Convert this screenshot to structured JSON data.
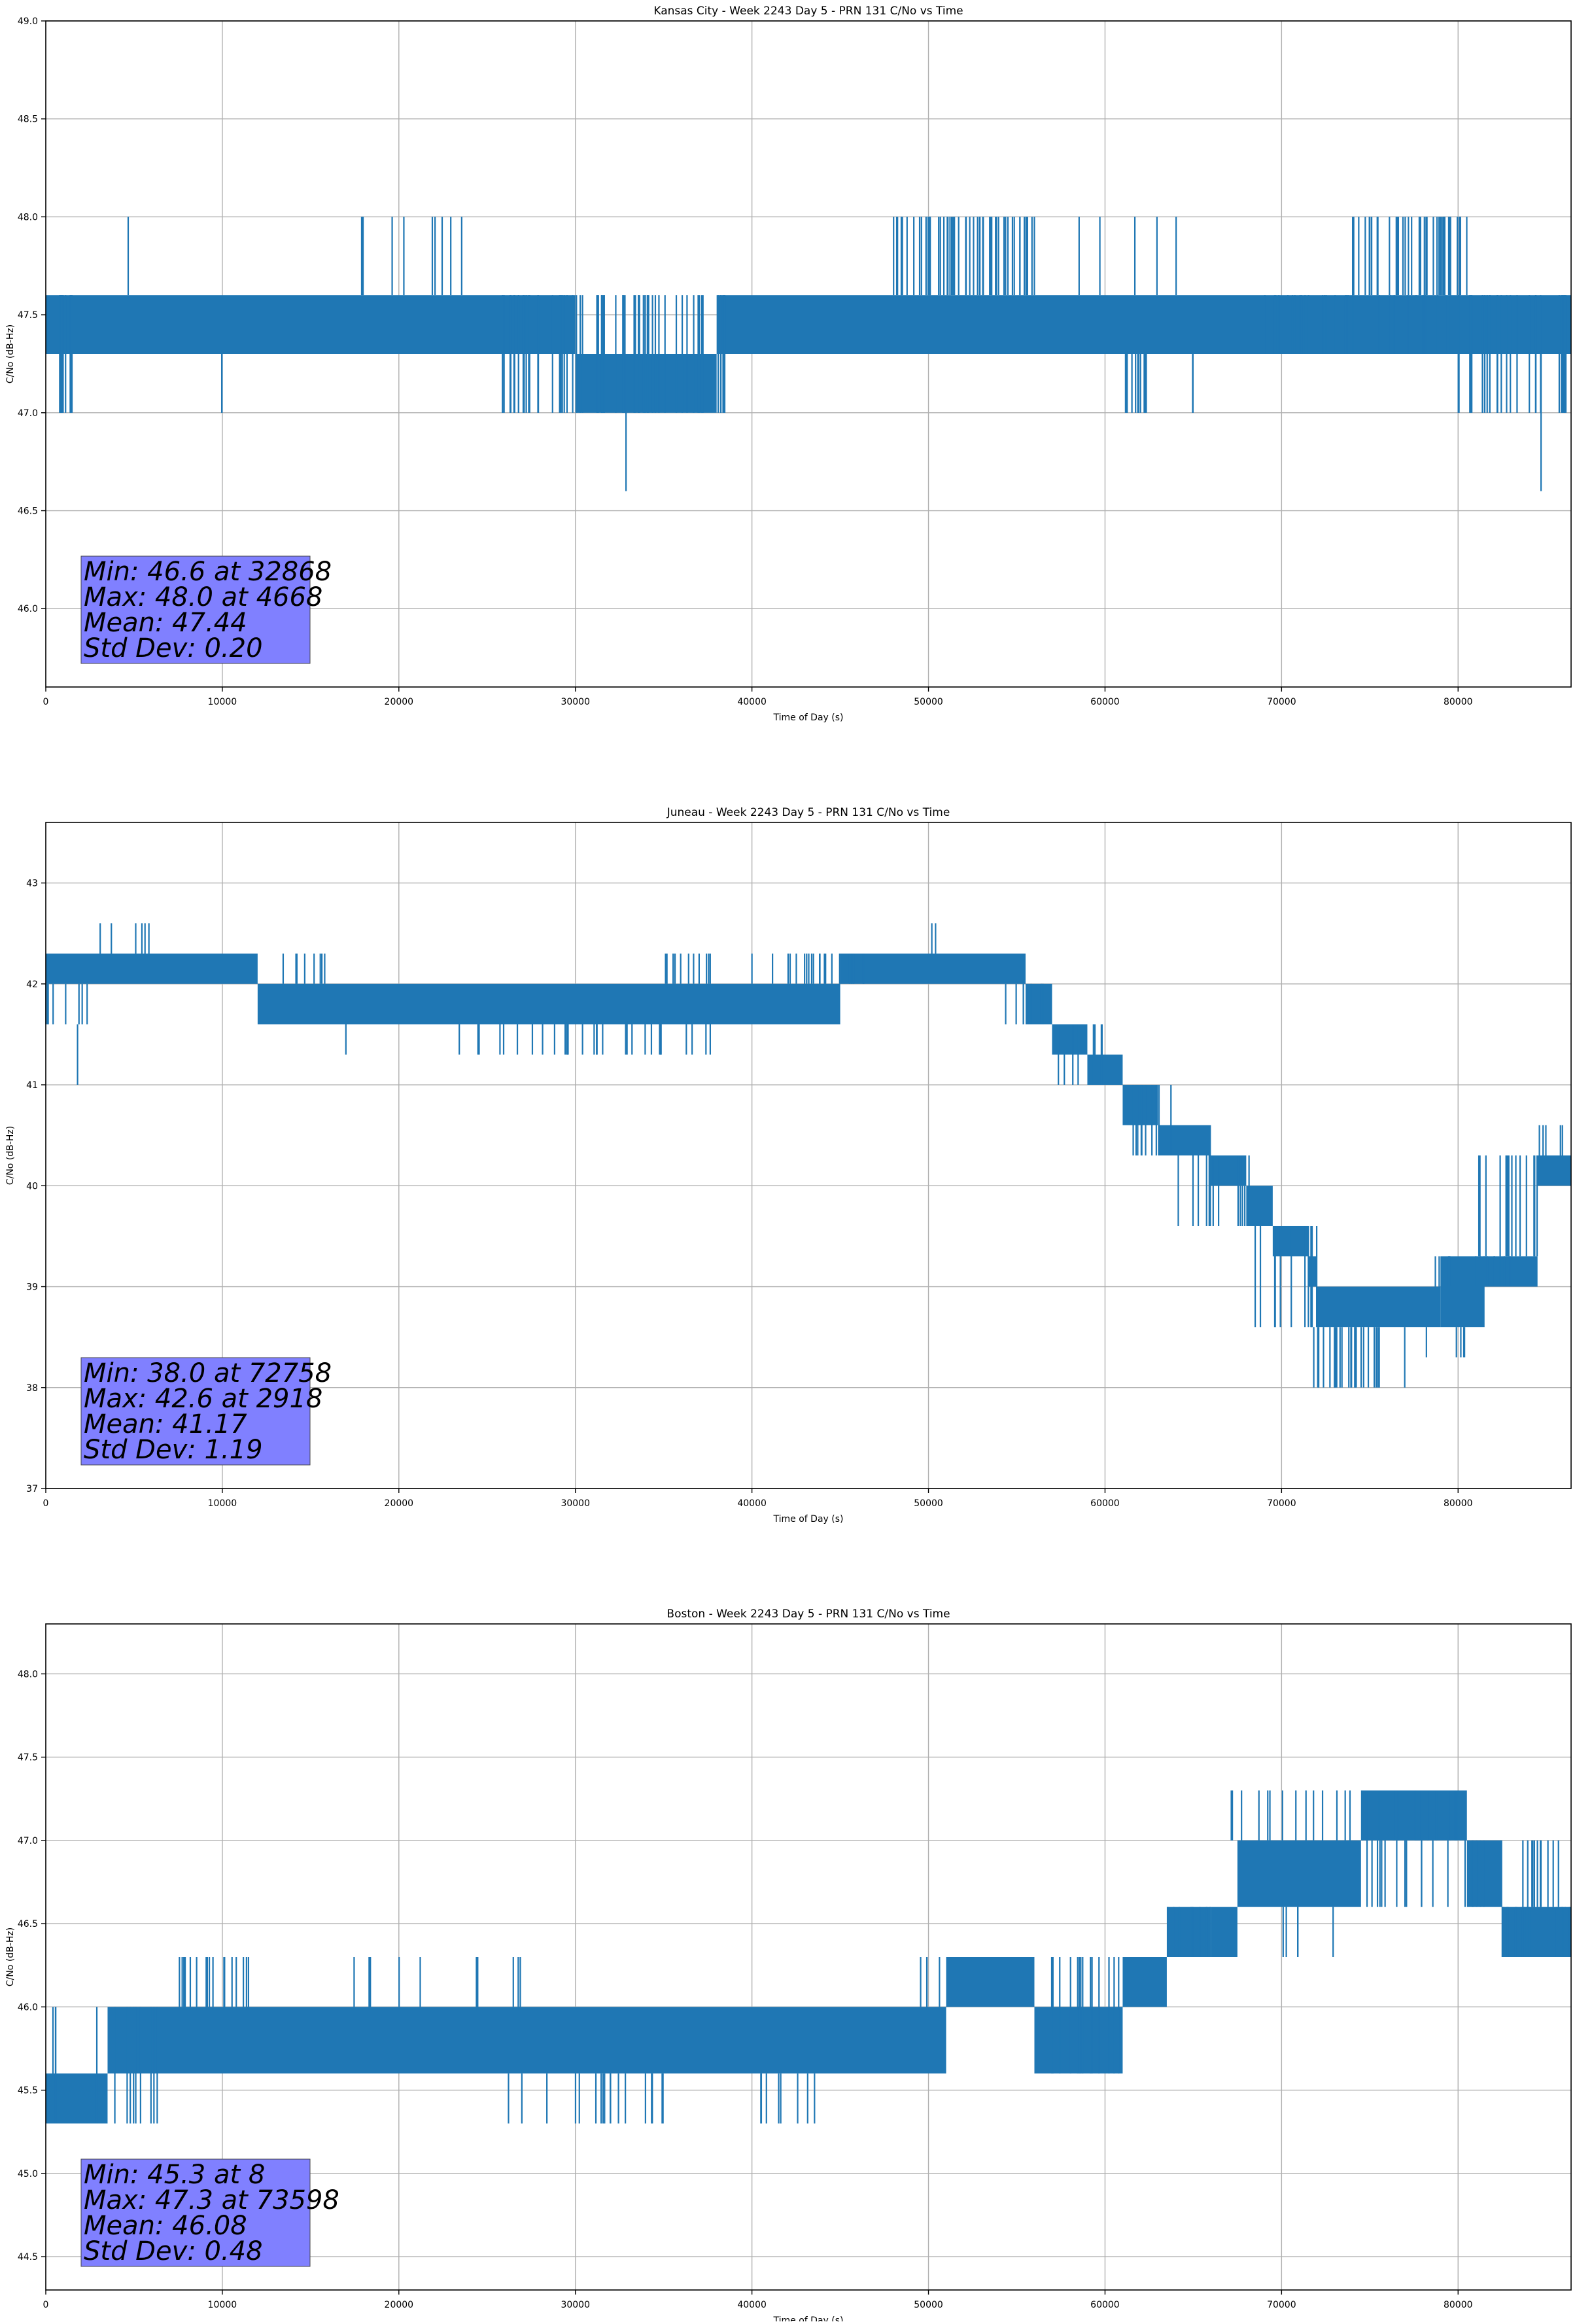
{
  "figure": {
    "background": "#ffffff",
    "series_color": "#1f77b4",
    "stats_box_color": "#8080ff",
    "grid_color": "#b0b0b0"
  },
  "chart_data": [
    {
      "type": "line",
      "title": "Kansas City - Week 2243 Day 5 - PRN 131 C/No vs Time",
      "xlabel": "Time of Day (s)",
      "ylabel": "C/No (dB-Hz)",
      "xlim": [
        0,
        86400
      ],
      "ylim": [
        45.6,
        49.0
      ],
      "xticks": [
        0,
        10000,
        20000,
        30000,
        40000,
        50000,
        60000,
        70000,
        80000
      ],
      "xtick_labels": [
        "0",
        "10000",
        "20000",
        "30000",
        "40000",
        "50000",
        "60000",
        "70000",
        "80000"
      ],
      "yticks": [
        46.0,
        46.5,
        47.0,
        47.5,
        48.0,
        48.5,
        49.0
      ],
      "ytick_labels": [
        "46.0",
        "46.5",
        "47.0",
        "47.5",
        "48.0",
        "48.5",
        "49.0"
      ],
      "grid": true,
      "stats": [
        "Min: 46.6 at 32868",
        "Max: 48.0 at 4668",
        "Mean: 47.44",
        "Std Dev: 0.20"
      ],
      "series": [
        {
          "bands": [
            {
              "x": [
                0,
                30000
              ],
              "y": [
                47.3,
                47.6
              ]
            },
            {
              "x": [
                30000,
                38000
              ],
              "y": [
                47.0,
                47.3
              ]
            },
            {
              "x": [
                38000,
                86400
              ],
              "y": [
                47.3,
                47.6
              ]
            }
          ],
          "spikes": [
            {
              "x": [
                600,
                1700
              ],
              "y": [
                47.0,
                47.6
              ],
              "n": 10
            },
            {
              "x": [
                9900,
                10000
              ],
              "y": [
                47.0,
                47.3
              ],
              "n": 2
            },
            {
              "x": [
                4668,
                4668
              ],
              "y": [
                47.6,
                48.0
              ],
              "n": 1
            },
            {
              "x": [
                17500,
                24000
              ],
              "y": [
                47.6,
                48.0
              ],
              "n": 10
            },
            {
              "x": [
                25500,
                38500
              ],
              "y": [
                47.0,
                47.6
              ],
              "n": 70
            },
            {
              "x": [
                32868,
                32868
              ],
              "y": [
                46.6,
                47.3
              ],
              "n": 1
            },
            {
              "x": [
                48000,
                56000
              ],
              "y": [
                47.6,
                48.0
              ],
              "n": 55
            },
            {
              "x": [
                57500,
                66000
              ],
              "y": [
                47.6,
                48.0
              ],
              "n": 5
            },
            {
              "x": [
                60000,
                63000
              ],
              "y": [
                47.0,
                47.3
              ],
              "n": 12
            },
            {
              "x": [
                64800,
                65000
              ],
              "y": [
                47.0,
                47.3
              ],
              "n": 2
            },
            {
              "x": [
                74000,
                80500
              ],
              "y": [
                47.6,
                48.0
              ],
              "n": 40
            },
            {
              "x": [
                69000,
                80000
              ],
              "y": [
                47.3,
                47.6
              ],
              "n": 30
            },
            {
              "x": [
                80000,
                86400
              ],
              "y": [
                47.0,
                47.6
              ],
              "n": 30
            },
            {
              "x": [
                84700,
                84700
              ],
              "y": [
                46.6,
                47.3
              ],
              "n": 1
            }
          ]
        }
      ]
    },
    {
      "type": "line",
      "title": "Juneau - Week 2243 Day 5 - PRN 131 C/No vs Time",
      "xlabel": "Time of Day (s)",
      "ylabel": "C/No (dB-Hz)",
      "xlim": [
        0,
        86400
      ],
      "ylim": [
        37.0,
        43.6
      ],
      "xticks": [
        0,
        10000,
        20000,
        30000,
        40000,
        50000,
        60000,
        70000,
        80000
      ],
      "xtick_labels": [
        "0",
        "10000",
        "20000",
        "30000",
        "40000",
        "50000",
        "60000",
        "70000",
        "80000"
      ],
      "yticks": [
        37,
        38,
        39,
        40,
        41,
        42,
        43
      ],
      "ytick_labels": [
        "37",
        "38",
        "39",
        "40",
        "41",
        "42",
        "43"
      ],
      "grid": true,
      "stats": [
        "Min: 38.0 at 72758",
        "Max: 42.6 at 2918",
        "Mean: 41.17",
        "Std Dev: 1.19"
      ],
      "series": [
        {
          "bands": [
            {
              "x": [
                0,
                12000
              ],
              "y": [
                42.0,
                42.3
              ]
            },
            {
              "x": [
                12000,
                45000
              ],
              "y": [
                41.6,
                42.0
              ]
            },
            {
              "x": [
                45000,
                55500
              ],
              "y": [
                42.0,
                42.3
              ]
            },
            {
              "x": [
                55500,
                57000
              ],
              "y": [
                41.6,
                42.0
              ]
            },
            {
              "x": [
                57000,
                59000
              ],
              "y": [
                41.3,
                41.6
              ]
            },
            {
              "x": [
                59000,
                61000
              ],
              "y": [
                41.0,
                41.3
              ]
            },
            {
              "x": [
                61000,
                63000
              ],
              "y": [
                40.6,
                41.0
              ]
            },
            {
              "x": [
                63000,
                66000
              ],
              "y": [
                40.3,
                40.6
              ]
            },
            {
              "x": [
                66000,
                68000
              ],
              "y": [
                40.0,
                40.3
              ]
            },
            {
              "x": [
                68000,
                69500
              ],
              "y": [
                39.6,
                40.0
              ]
            },
            {
              "x": [
                69500,
                71500
              ],
              "y": [
                39.3,
                39.6
              ]
            },
            {
              "x": [
                71500,
                72000
              ],
              "y": [
                39.0,
                39.3
              ]
            },
            {
              "x": [
                72000,
                79000
              ],
              "y": [
                38.6,
                39.0
              ]
            },
            {
              "x": [
                79000,
                81500
              ],
              "y": [
                38.6,
                39.3
              ]
            },
            {
              "x": [
                81500,
                84500
              ],
              "y": [
                39.0,
                39.3
              ]
            },
            {
              "x": [
                84500,
                86400
              ],
              "y": [
                40.0,
                40.3
              ]
            }
          ],
          "spikes": [
            {
              "x": [
                0,
                2500
              ],
              "y": [
                41.6,
                42.0
              ],
              "n": 8
            },
            {
              "x": [
                1800,
                1800
              ],
              "y": [
                41.0,
                41.6
              ],
              "n": 1
            },
            {
              "x": [
                2918,
                6500
              ],
              "y": [
                42.3,
                42.6
              ],
              "n": 6
            },
            {
              "x": [
                12000,
                16000
              ],
              "y": [
                42.0,
                42.3
              ],
              "n": 8
            },
            {
              "x": [
                17000,
                17200
              ],
              "y": [
                41.3,
                41.6
              ],
              "n": 1
            },
            {
              "x": [
                21500,
                38000
              ],
              "y": [
                41.3,
                41.6
              ],
              "n": 30
            },
            {
              "x": [
                35000,
                38000
              ],
              "y": [
                42.0,
                42.3
              ],
              "n": 12
            },
            {
              "x": [
                40000,
                40100
              ],
              "y": [
                42.0,
                42.3
              ],
              "n": 1
            },
            {
              "x": [
                41000,
                46500
              ],
              "y": [
                42.0,
                42.3
              ],
              "n": 20
            },
            {
              "x": [
                50000,
                50500
              ],
              "y": [
                42.3,
                42.6
              ],
              "n": 2
            },
            {
              "x": [
                54000,
                57500
              ],
              "y": [
                41.6,
                42.0
              ],
              "n": 8
            },
            {
              "x": [
                57000,
                60000
              ],
              "y": [
                41.0,
                41.6
              ],
              "n": 8
            },
            {
              "x": [
                61000,
                64000
              ],
              "y": [
                40.3,
                41.0
              ],
              "n": 10
            },
            {
              "x": [
                64000,
                68500
              ],
              "y": [
                39.6,
                40.3
              ],
              "n": 14
            },
            {
              "x": [
                68000,
                72000
              ],
              "y": [
                38.6,
                39.6
              ],
              "n": 12
            },
            {
              "x": [
                71500,
                77000
              ],
              "y": [
                38.0,
                38.6
              ],
              "n": 25
            },
            {
              "x": [
                76000,
                80500
              ],
              "y": [
                38.3,
                38.6
              ],
              "n": 5
            },
            {
              "x": [
                78500,
                84500
              ],
              "y": [
                39.0,
                39.3
              ],
              "n": 14
            },
            {
              "x": [
                81000,
                84500
              ],
              "y": [
                39.3,
                40.3
              ],
              "n": 15
            },
            {
              "x": [
                84000,
                86400
              ],
              "y": [
                40.3,
                40.6
              ],
              "n": 5
            }
          ]
        }
      ]
    },
    {
      "type": "line",
      "title": "Boston - Week 2243 Day 5 - PRN 131 C/No vs Time",
      "xlabel": "Time of Day (s)",
      "ylabel": "C/No (dB-Hz)",
      "xlim": [
        0,
        86400
      ],
      "ylim": [
        44.3,
        48.3
      ],
      "xticks": [
        0,
        10000,
        20000,
        30000,
        40000,
        50000,
        60000,
        70000,
        80000
      ],
      "xtick_labels": [
        "0",
        "10000",
        "20000",
        "30000",
        "40000",
        "50000",
        "60000",
        "70000",
        "80000"
      ],
      "yticks": [
        44.5,
        45.0,
        45.5,
        46.0,
        46.5,
        47.0,
        47.5,
        48.0
      ],
      "ytick_labels": [
        "44.5",
        "45.0",
        "45.5",
        "46.0",
        "46.5",
        "47.0",
        "47.5",
        "48.0"
      ],
      "grid": true,
      "stats": [
        "Min: 45.3 at 8",
        "Max: 47.3 at 73598",
        "Mean: 46.08",
        "Std Dev: 0.48"
      ],
      "series": [
        {
          "bands": [
            {
              "x": [
                0,
                3500
              ],
              "y": [
                45.3,
                45.6
              ]
            },
            {
              "x": [
                3500,
                51000
              ],
              "y": [
                45.6,
                46.0
              ]
            },
            {
              "x": [
                51000,
                56000
              ],
              "y": [
                46.0,
                46.3
              ]
            },
            {
              "x": [
                56000,
                61000
              ],
              "y": [
                45.6,
                46.0
              ]
            },
            {
              "x": [
                61000,
                63500
              ],
              "y": [
                46.0,
                46.3
              ]
            },
            {
              "x": [
                63500,
                66000
              ],
              "y": [
                46.3,
                46.6
              ]
            },
            {
              "x": [
                66000,
                67500
              ],
              "y": [
                46.3,
                46.6
              ]
            },
            {
              "x": [
                67500,
                74500
              ],
              "y": [
                46.6,
                47.0
              ]
            },
            {
              "x": [
                74500,
                80500
              ],
              "y": [
                47.0,
                47.3
              ]
            },
            {
              "x": [
                80500,
                82500
              ],
              "y": [
                46.6,
                47.0
              ]
            },
            {
              "x": [
                82500,
                86400
              ],
              "y": [
                46.3,
                46.6
              ]
            }
          ],
          "spikes": [
            {
              "x": [
                0,
                700
              ],
              "y": [
                45.3,
                46.0
              ],
              "n": 3
            },
            {
              "x": [
                2500,
                6500
              ],
              "y": [
                45.3,
                46.0
              ],
              "n": 10
            },
            {
              "x": [
                7500,
                11500
              ],
              "y": [
                46.0,
                46.3
              ],
              "n": 18
            },
            {
              "x": [
                14500,
                27000
              ],
              "y": [
                46.0,
                46.3
              ],
              "n": 10
            },
            {
              "x": [
                25500,
                35000
              ],
              "y": [
                45.3,
                45.6
              ],
              "n": 18
            },
            {
              "x": [
                40500,
                44500
              ],
              "y": [
                45.3,
                45.6
              ],
              "n": 8
            },
            {
              "x": [
                49500,
                51000
              ],
              "y": [
                46.0,
                46.3
              ],
              "n": 4
            },
            {
              "x": [
                56500,
                63500
              ],
              "y": [
                45.6,
                46.3
              ],
              "n": 14
            },
            {
              "x": [
                63000,
                66500
              ],
              "y": [
                46.3,
                46.6
              ],
              "n": 10
            },
            {
              "x": [
                66500,
                73500
              ],
              "y": [
                47.0,
                47.3
              ],
              "n": 12
            },
            {
              "x": [
                70000,
                73000
              ],
              "y": [
                46.3,
                46.6
              ],
              "n": 5
            },
            {
              "x": [
                73598,
                80000
              ],
              "y": [
                47.0,
                47.3
              ],
              "n": 20
            },
            {
              "x": [
                74000,
                80500
              ],
              "y": [
                46.6,
                47.0
              ],
              "n": 14
            },
            {
              "x": [
                80500,
                86000
              ],
              "y": [
                46.6,
                47.0
              ],
              "n": 16
            },
            {
              "x": [
                82500,
                86400
              ],
              "y": [
                46.3,
                46.6
              ],
              "n": 18
            }
          ]
        }
      ]
    }
  ]
}
